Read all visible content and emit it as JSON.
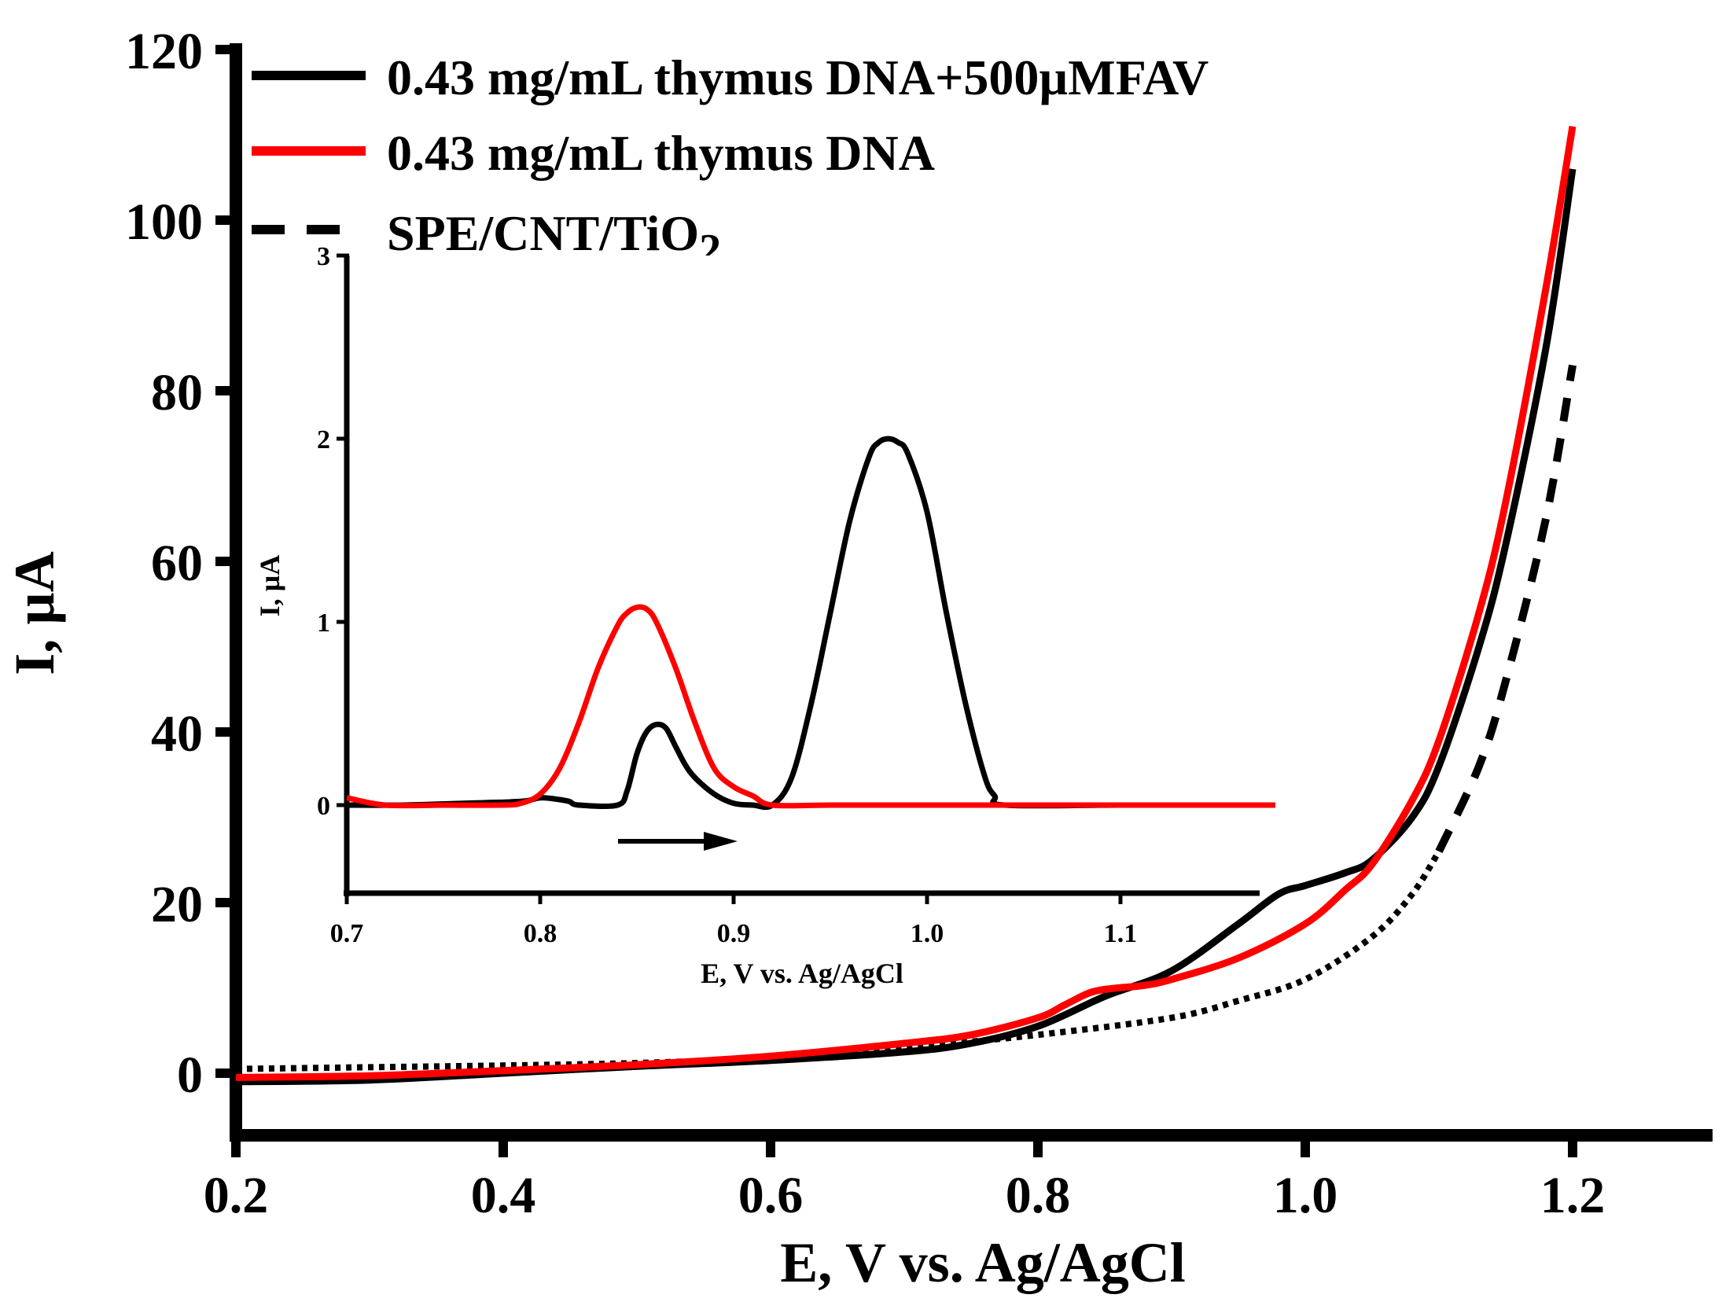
{
  "chart_data": [
    {
      "type": "line",
      "id": "main",
      "title": "",
      "xlabel": "E, V vs. Ag/AgCl",
      "ylabel": "I, µA",
      "xlim": [
        0.2,
        1.3
      ],
      "ylim": [
        -7,
        120
      ],
      "x_ticks": [
        "0.2",
        "0.4",
        "0.6",
        "0.8",
        "1.0",
        "1.2"
      ],
      "y_ticks": [
        "0",
        "20",
        "40",
        "60",
        "80",
        "100",
        "120"
      ],
      "legend_position": "top-left",
      "series": [
        {
          "name": "0.43 mg/mL thymus DNA+500µMFAV",
          "color": "#000000",
          "style": "solid",
          "x": [
            0.2,
            0.3,
            0.4,
            0.5,
            0.6,
            0.7,
            0.75,
            0.8,
            0.85,
            0.9,
            0.95,
            0.98,
            1.0,
            1.03,
            1.05,
            1.08,
            1.1,
            1.13,
            1.15,
            1.18,
            1.2
          ],
          "y": [
            -1,
            -0.8,
            0,
            0.8,
            1.5,
            2.5,
            3.5,
            5.5,
            9,
            12,
            17.5,
            21,
            22,
            23.5,
            25,
            30,
            36,
            50,
            62,
            85,
            106
          ]
        },
        {
          "name": "0.43 mg/mL thymus DNA",
          "color": "#ff0000",
          "style": "solid",
          "x": [
            0.2,
            0.3,
            0.4,
            0.5,
            0.6,
            0.7,
            0.75,
            0.8,
            0.82,
            0.84,
            0.86,
            0.88,
            0.9,
            0.95,
            1.0,
            1.03,
            1.05,
            1.08,
            1.1,
            1.13,
            1.15,
            1.18,
            1.2
          ],
          "y": [
            -0.5,
            -0.3,
            0.3,
            1.0,
            2.0,
            3.5,
            4.5,
            6.5,
            8,
            9.5,
            10,
            10.3,
            11,
            13.5,
            17.5,
            21.5,
            24.5,
            32,
            39,
            54,
            67,
            92,
            111
          ]
        },
        {
          "name": "SPE/CNT/TiO2",
          "color": "#000000",
          "style": "dashed",
          "x": [
            0.2,
            0.3,
            0.4,
            0.5,
            0.6,
            0.7,
            0.8,
            0.9,
            0.95,
            1.0,
            1.05,
            1.08,
            1.1,
            1.13,
            1.15,
            1.18,
            1.2
          ],
          "y": [
            0.5,
            0.7,
            0.9,
            1.2,
            1.8,
            3.0,
            4.5,
            6.5,
            8.5,
            11,
            16,
            21,
            26,
            36,
            46,
            65,
            83
          ]
        }
      ]
    },
    {
      "type": "line",
      "id": "inset",
      "title": "",
      "xlabel": "E, V vs. Ag/AgCl",
      "ylabel": "I, µA",
      "xlim": [
        0.7,
        1.18
      ],
      "ylim": [
        -0.45,
        3
      ],
      "x_ticks": [
        "0.7",
        "0.8",
        "0.9",
        "1.0",
        "1.1"
      ],
      "y_ticks": [
        "0",
        "1",
        "2",
        "3"
      ],
      "annotation": "arrow pointing right (scan direction) near E = 0.84–0.90 V",
      "series": [
        {
          "name": "0.43 mg/mL thymus DNA+500µMFAV",
          "color": "#000000",
          "x": [
            0.7,
            0.73,
            0.76,
            0.79,
            0.8,
            0.81,
            0.815,
            0.82,
            0.84,
            0.845,
            0.85,
            0.855,
            0.86,
            0.865,
            0.87,
            0.875,
            0.88,
            0.89,
            0.9,
            0.91,
            0.92,
            0.93,
            0.94,
            0.95,
            0.96,
            0.97,
            0.975,
            0.98,
            0.985,
            0.99,
            1.0,
            1.01,
            1.02,
            1.03,
            1.035,
            1.04,
            1.1,
            1.18
          ],
          "y": [
            0.0,
            0.0,
            0.01,
            0.02,
            0.04,
            0.03,
            0.02,
            0.0,
            0.0,
            0.08,
            0.28,
            0.4,
            0.44,
            0.42,
            0.32,
            0.22,
            0.15,
            0.06,
            0.01,
            0.0,
            0.0,
            0.15,
            0.55,
            1.05,
            1.55,
            1.9,
            1.98,
            2.0,
            1.98,
            1.92,
            1.6,
            1.05,
            0.55,
            0.15,
            0.05,
            0.0,
            0.0,
            0.0
          ]
        },
        {
          "name": "0.43 mg/mL thymus DNA",
          "color": "#ff0000",
          "x": [
            0.7,
            0.72,
            0.75,
            0.78,
            0.79,
            0.8,
            0.81,
            0.82,
            0.83,
            0.84,
            0.845,
            0.85,
            0.855,
            0.86,
            0.87,
            0.88,
            0.89,
            0.9,
            0.91,
            0.92,
            0.95,
            1.0,
            1.1,
            1.18
          ],
          "y": [
            0.04,
            0.0,
            0.0,
            0.0,
            0.01,
            0.06,
            0.2,
            0.45,
            0.75,
            0.98,
            1.05,
            1.08,
            1.07,
            1.0,
            0.75,
            0.45,
            0.2,
            0.1,
            0.05,
            0.0,
            0.0,
            0.0,
            0.0,
            0.0
          ]
        }
      ]
    }
  ]
}
